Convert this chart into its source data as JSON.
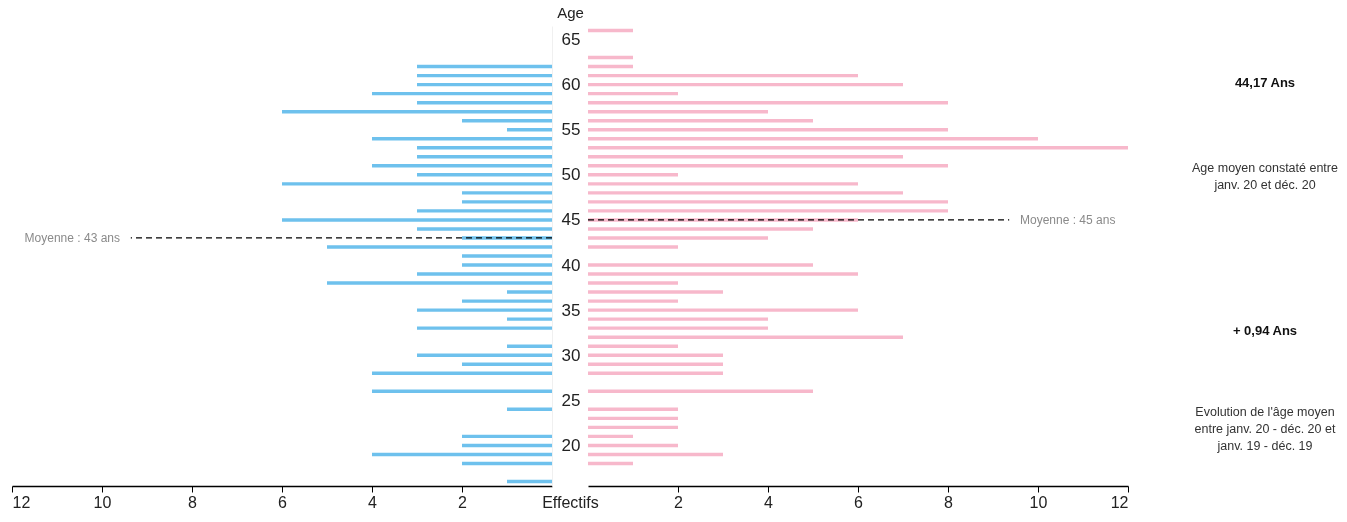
{
  "chart_data": [
    {
      "type": "bar",
      "orientation": "horizontal",
      "color": "#6ec1ed",
      "tick_labels": "x",
      "xlabel": "Effectifs",
      "x": [
        62,
        61,
        60,
        59,
        58,
        57,
        56,
        55,
        54,
        53,
        52,
        51,
        50,
        49,
        48,
        47,
        46,
        45,
        44,
        43,
        42,
        41,
        40,
        39,
        38,
        37,
        36,
        35,
        34,
        33,
        32,
        31,
        30,
        29,
        28,
        27,
        26,
        25,
        24,
        23,
        22,
        21,
        20,
        19,
        18,
        17,
        16
      ],
      "values": [
        3,
        3,
        3,
        4,
        3,
        6,
        2,
        1,
        4,
        3,
        3,
        4,
        3,
        6,
        2,
        2,
        3,
        6,
        3,
        2,
        5,
        2,
        2,
        3,
        5,
        1,
        2,
        3,
        1,
        3,
        null,
        1,
        3,
        2,
        4,
        null,
        4,
        null,
        1,
        null,
        null,
        2,
        2,
        4,
        2,
        null,
        1
      ],
      "xlim": [
        12,
        0
      ],
      "xticks": [
        12,
        10,
        8,
        6,
        4,
        2
      ],
      "ylim": [
        15.5,
        66.5
      ],
      "yticks": [
        20,
        25,
        30,
        35,
        40,
        45,
        50,
        55,
        60,
        65
      ],
      "ref_lines": [
        {
          "axis": "y",
          "value": 43,
          "label": "Moyenne : 43 ans",
          "line_style": "dashed",
          "color": "#000000"
        }
      ]
    },
    {
      "type": "bar",
      "orientation": "horizontal",
      "color": "#f7b8cb",
      "ylabel": "Age",
      "x": [
        66,
        65,
        64,
        63,
        62,
        61,
        60,
        59,
        58,
        57,
        56,
        55,
        54,
        53,
        52,
        51,
        50,
        49,
        48,
        47,
        46,
        45,
        44,
        43,
        42,
        41,
        40,
        39,
        38,
        37,
        36,
        35,
        34,
        33,
        32,
        31,
        30,
        29,
        28,
        27,
        26,
        25,
        24,
        23,
        22,
        21,
        20,
        19,
        18
      ],
      "values": [
        1,
        null,
        null,
        1,
        1,
        6,
        7,
        2,
        8,
        4,
        5,
        8,
        10,
        12,
        7,
        8,
        2,
        6,
        7,
        8,
        8,
        6,
        5,
        4,
        2,
        null,
        5,
        6,
        2,
        3,
        2,
        6,
        4,
        4,
        7,
        2,
        3,
        3,
        3,
        null,
        5,
        null,
        2,
        2,
        2,
        1,
        2,
        3,
        1
      ],
      "xlim": [
        0,
        12
      ],
      "xticks": [
        2,
        4,
        6,
        8,
        10,
        12
      ],
      "ylim": [
        15.5,
        66.5
      ],
      "yticks": [
        20,
        25,
        30,
        35,
        40,
        45,
        50,
        55,
        60,
        65
      ],
      "ref_lines": [
        {
          "axis": "y",
          "value": 45,
          "label": "Moyenne : 45 ans",
          "line_style": "dashed",
          "color": "#000000"
        }
      ],
      "annotations": [
        "44,17 Ans",
        "Age moyen constaté entre janv. 20 et déc. 20",
        "+ 0,94 Ans",
        "Evolution de l'âge moyen entre janv. 20 - déc. 20 et janv. 19 - déc. 19"
      ]
    }
  ]
}
